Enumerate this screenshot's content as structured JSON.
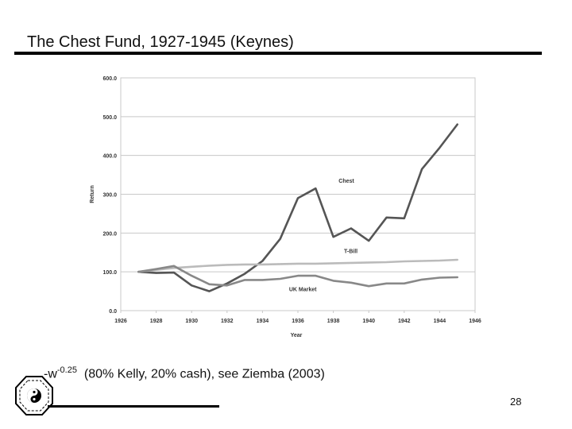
{
  "slide": {
    "title": "The Chest Fund, 1927-1945 (Keynes)",
    "caption_prefix": "-w",
    "caption_exponent": "-0.25",
    "caption_text": "(80% Kelly, 20% cash), see Ziemba (2003)",
    "page_number": "28"
  },
  "chart_data": {
    "type": "line",
    "title": "",
    "xlabel": "Year",
    "ylabel": "Return",
    "xlim": [
      1926,
      1946
    ],
    "ylim": [
      0,
      600
    ],
    "xticks": [
      1926,
      1928,
      1930,
      1932,
      1934,
      1936,
      1938,
      1940,
      1942,
      1944,
      1946
    ],
    "xtick_labels": [
      "1926",
      "1928",
      "1930",
      "1932",
      "1934",
      "1936",
      "1938",
      "1940",
      "1942",
      "1944",
      "1946"
    ],
    "yticks": [
      0,
      100,
      200,
      300,
      400,
      500,
      600
    ],
    "ytick_labels": [
      "0.0",
      "100.0",
      "200.0",
      "300.0",
      "400.0",
      "500.0",
      "600.0"
    ],
    "grid": true,
    "x": [
      1927,
      1928,
      1929,
      1930,
      1931,
      1932,
      1933,
      1934,
      1935,
      1936,
      1937,
      1938,
      1939,
      1940,
      1941,
      1942,
      1943,
      1944,
      1945
    ],
    "series": [
      {
        "name": "Chest",
        "color": "#555555",
        "values": [
          100,
          97,
          98,
          65,
          50,
          70,
          95,
          128,
          185,
          290,
          315,
          190,
          212,
          180,
          240,
          238,
          365,
          420,
          480
        ],
        "label_at": [
          1938.3,
          330
        ]
      },
      {
        "name": "T-Bill",
        "color": "#bbbbbb",
        "values": [
          100,
          105,
          110,
          113,
          116,
          118,
          119,
          119,
          120,
          121,
          121,
          122,
          123,
          124,
          125,
          127,
          128,
          129,
          131
        ],
        "label_at": [
          1938.6,
          148
        ]
      },
      {
        "name": "UK Market",
        "color": "#888888",
        "values": [
          100,
          107,
          115,
          90,
          68,
          65,
          79,
          79,
          82,
          90,
          90,
          77,
          72,
          63,
          70,
          70,
          80,
          85,
          86
        ],
        "label_at": [
          1935.5,
          50
        ]
      }
    ]
  }
}
